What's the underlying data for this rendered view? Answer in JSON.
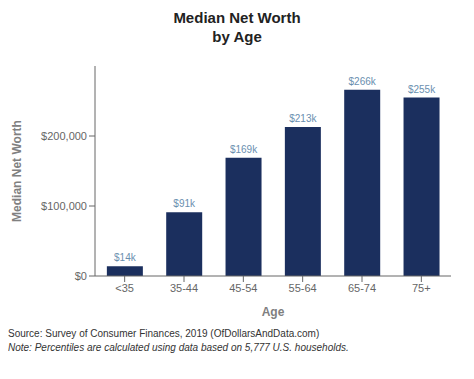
{
  "chart_data": {
    "type": "bar",
    "title": "Median Net Worth",
    "subtitle": "by Age",
    "categories": [
      "<35",
      "35-44",
      "45-54",
      "55-64",
      "65-74",
      "75+"
    ],
    "values": [
      14000,
      91000,
      169000,
      213000,
      266000,
      255000
    ],
    "value_labels": [
      "$14k",
      "$91k",
      "$169k",
      "$213k",
      "$266k",
      "$255k"
    ],
    "data_labels": true,
    "color": "#1b2f5e",
    "xlabel": "Age",
    "ylabel": "Median Net Worth",
    "ylim": [
      0,
      300000
    ],
    "yticks": [
      {
        "value": 0,
        "label": "$0"
      },
      {
        "value": 100000,
        "label": "$100,000"
      },
      {
        "value": 200000,
        "label": "$200,000"
      }
    ],
    "grid": false,
    "annotations": [
      "Source:  Survey of Consumer Finances, 2019 (OfDollarsAndData.com)",
      "Note: Percentiles are calculated using data based on 5,777 U.S. households."
    ]
  }
}
